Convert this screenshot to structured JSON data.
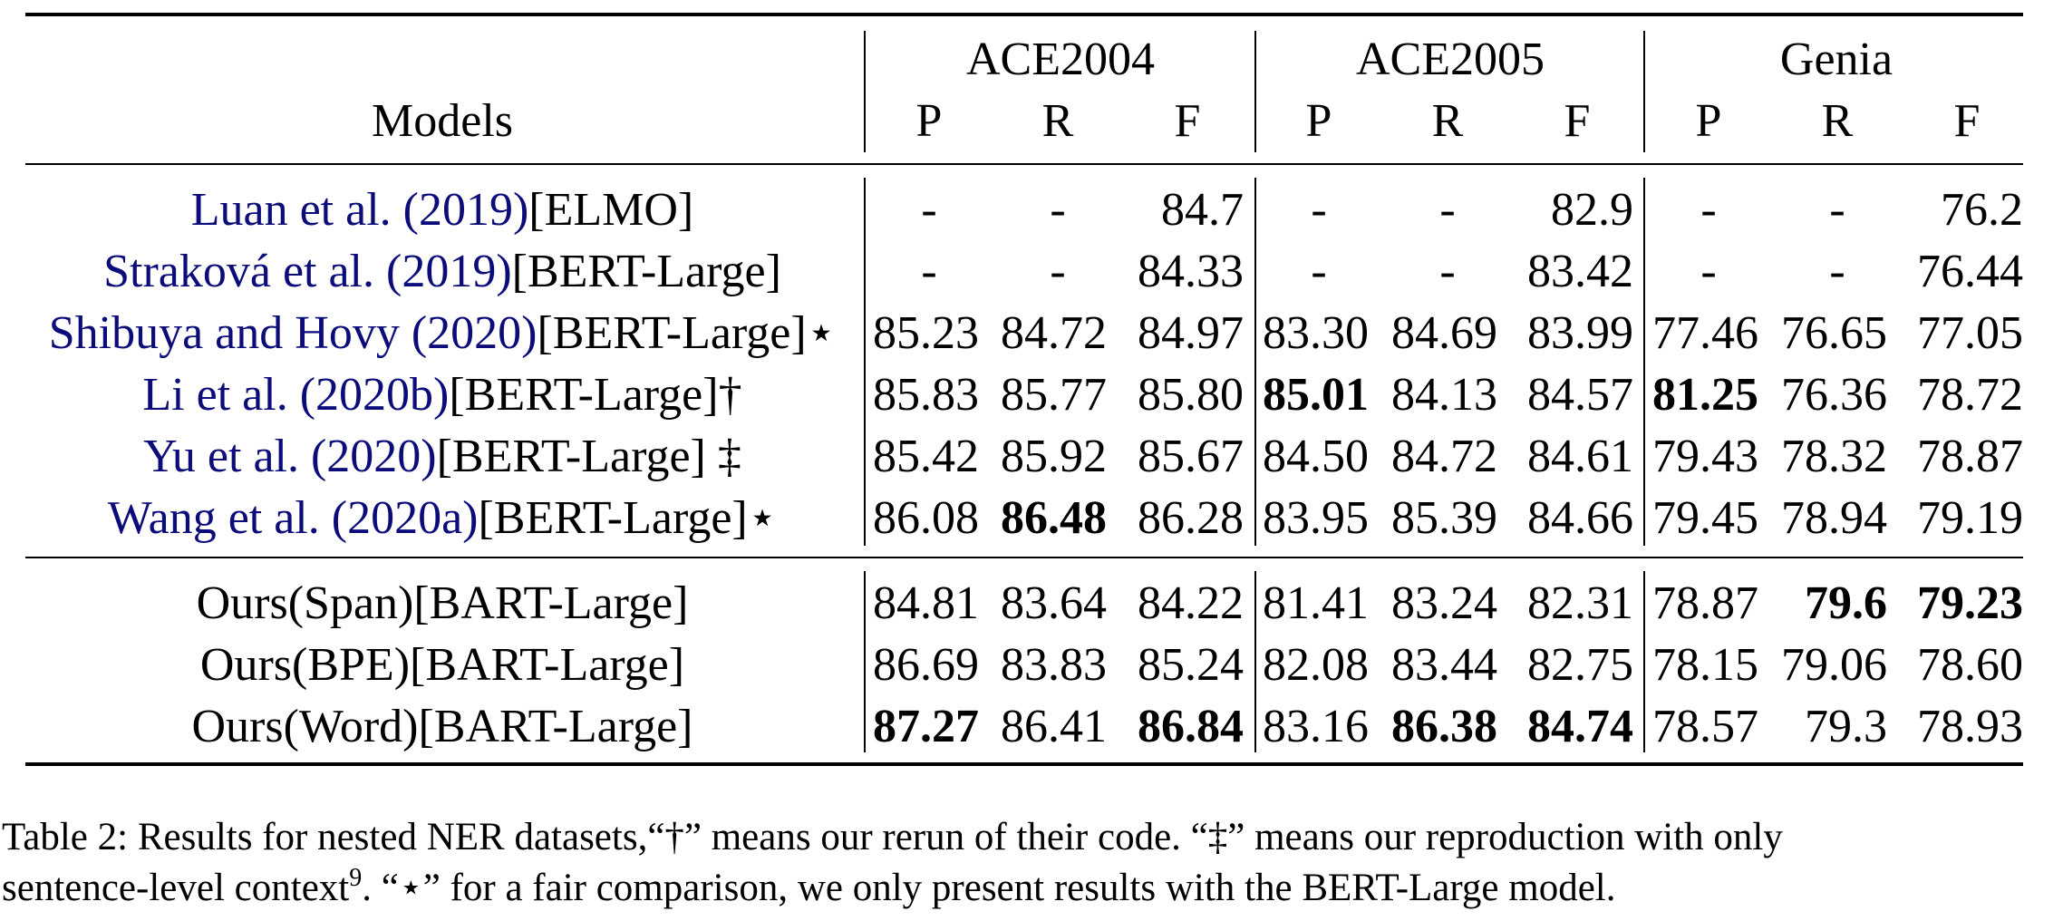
{
  "table": {
    "models_header": "Models",
    "groups": [
      "ACE2004",
      "ACE2005",
      "Genia"
    ],
    "metrics": [
      "P",
      "R",
      "F"
    ],
    "baseline_rows": [
      {
        "cite": "Luan et al. (2019)",
        "suffix": "[ELMO]",
        "values": [
          "-",
          "-",
          "84.7",
          "-",
          "-",
          "82.9",
          "-",
          "-",
          "76.2"
        ],
        "bold": []
      },
      {
        "cite": "Straková et al. (2019)",
        "suffix": "[BERT-Large]",
        "values": [
          "-",
          "-",
          "84.33",
          "-",
          "-",
          "83.42",
          "-",
          "-",
          "76.44"
        ],
        "bold": []
      },
      {
        "cite": "Shibuya and Hovy (2020)",
        "suffix": "[BERT-Large]⋆",
        "values": [
          "85.23",
          "84.72",
          "84.97",
          "83.30",
          "84.69",
          "83.99",
          "77.46",
          "76.65",
          "77.05"
        ],
        "bold": []
      },
      {
        "cite": "Li et al. (2020b)",
        "suffix": "[BERT-Large]†",
        "values": [
          "85.83",
          "85.77",
          "85.80",
          "85.01",
          "84.13",
          "84.57",
          "81.25",
          "76.36",
          "78.72"
        ],
        "bold": [
          3,
          6
        ]
      },
      {
        "cite": "Yu et al. (2020)",
        "suffix": "[BERT-Large] ‡",
        "values": [
          "85.42",
          "85.92",
          "85.67",
          "84.50",
          "84.72",
          "84.61",
          "79.43",
          "78.32",
          "78.87"
        ],
        "bold": []
      },
      {
        "cite": "Wang et al. (2020a)",
        "suffix": "[BERT-Large]⋆",
        "values": [
          "86.08",
          "86.48",
          "86.28",
          "83.95",
          "85.39",
          "84.66",
          "79.45",
          "78.94",
          "79.19"
        ],
        "bold": [
          1
        ]
      }
    ],
    "our_rows": [
      {
        "cite": "",
        "suffix": "Ours(Span)[BART-Large]",
        "values": [
          "84.81",
          "83.64",
          "84.22",
          "81.41",
          "83.24",
          "82.31",
          "78.87",
          "79.6",
          "79.23"
        ],
        "bold": [
          7,
          8
        ]
      },
      {
        "cite": "",
        "suffix": "Ours(BPE)[BART-Large]",
        "values": [
          "86.69",
          "83.83",
          "85.24",
          "82.08",
          "83.44",
          "82.75",
          "78.15",
          "79.06",
          "78.60"
        ],
        "bold": []
      },
      {
        "cite": "",
        "suffix": "Ours(Word)[BART-Large]",
        "values": [
          "87.27",
          "86.41",
          "86.84",
          "83.16",
          "86.38",
          "84.74",
          "78.57",
          "79.3",
          "78.93"
        ],
        "bold": [
          0,
          2,
          4,
          5
        ]
      }
    ]
  },
  "caption": {
    "line1": "Table 2: Results for nested NER datasets,“†” means our rerun of their code. “‡” means our reproduction with only",
    "line2_pre": "sentence-level context",
    "footnote_mark": "9",
    "line2_post": ". “⋆” for a fair comparison, we only present results with the BERT-Large model."
  }
}
